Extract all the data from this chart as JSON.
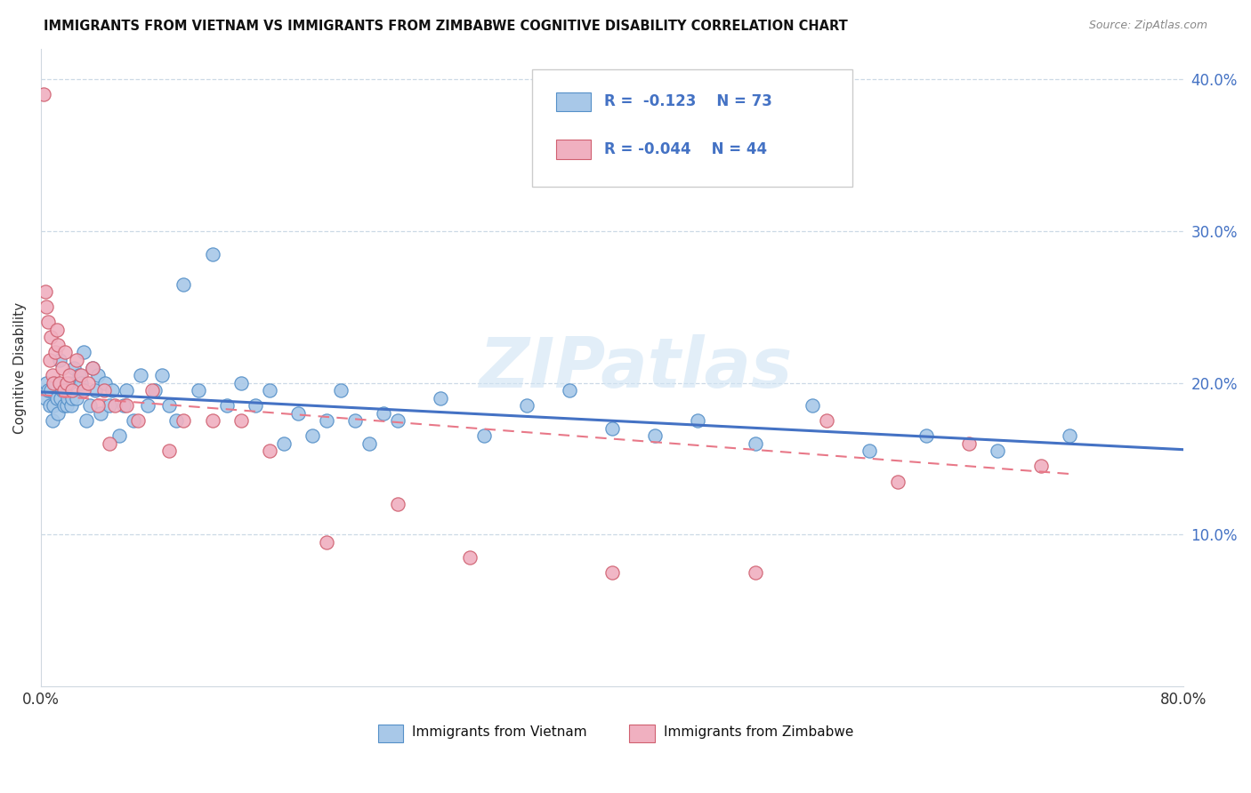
{
  "title": "IMMIGRANTS FROM VIETNAM VS IMMIGRANTS FROM ZIMBABWE COGNITIVE DISABILITY CORRELATION CHART",
  "source": "Source: ZipAtlas.com",
  "ylabel": "Cognitive Disability",
  "xlim": [
    0.0,
    0.8
  ],
  "ylim": [
    0.0,
    0.42
  ],
  "yticks": [
    0.1,
    0.2,
    0.3,
    0.4
  ],
  "ytick_labels": [
    "10.0%",
    "20.0%",
    "30.0%",
    "40.0%"
  ],
  "xticks": [
    0.0,
    0.1,
    0.2,
    0.3,
    0.4,
    0.5,
    0.6,
    0.7,
    0.8
  ],
  "xtick_labels": [
    "0.0%",
    "",
    "",
    "",
    "",
    "",
    "",
    "",
    "80.0%"
  ],
  "vietnam_color": "#a8c8e8",
  "vietnam_edge_color": "#5590c8",
  "zimbabwe_color": "#f0b0c0",
  "zimbabwe_edge_color": "#d06070",
  "vietnam_line_color": "#4472c4",
  "zimbabwe_line_color": "#e87888",
  "watermark": "ZIPatlas",
  "vietnam_x": [
    0.003,
    0.004,
    0.005,
    0.006,
    0.007,
    0.008,
    0.009,
    0.01,
    0.011,
    0.012,
    0.013,
    0.014,
    0.015,
    0.016,
    0.017,
    0.018,
    0.019,
    0.02,
    0.021,
    0.022,
    0.023,
    0.025,
    0.027,
    0.028,
    0.03,
    0.032,
    0.034,
    0.036,
    0.038,
    0.04,
    0.042,
    0.045,
    0.048,
    0.05,
    0.055,
    0.058,
    0.06,
    0.065,
    0.07,
    0.075,
    0.08,
    0.085,
    0.09,
    0.095,
    0.1,
    0.11,
    0.12,
    0.13,
    0.14,
    0.15,
    0.16,
    0.17,
    0.18,
    0.19,
    0.2,
    0.21,
    0.22,
    0.23,
    0.24,
    0.25,
    0.28,
    0.31,
    0.34,
    0.37,
    0.4,
    0.43,
    0.46,
    0.5,
    0.54,
    0.58,
    0.62,
    0.67,
    0.72
  ],
  "vietnam_y": [
    0.19,
    0.2,
    0.195,
    0.185,
    0.195,
    0.175,
    0.185,
    0.2,
    0.19,
    0.18,
    0.215,
    0.19,
    0.195,
    0.185,
    0.195,
    0.185,
    0.19,
    0.2,
    0.185,
    0.19,
    0.21,
    0.19,
    0.205,
    0.2,
    0.22,
    0.175,
    0.185,
    0.21,
    0.195,
    0.205,
    0.18,
    0.2,
    0.185,
    0.195,
    0.165,
    0.185,
    0.195,
    0.175,
    0.205,
    0.185,
    0.195,
    0.205,
    0.185,
    0.175,
    0.265,
    0.195,
    0.285,
    0.185,
    0.2,
    0.185,
    0.195,
    0.16,
    0.18,
    0.165,
    0.175,
    0.195,
    0.175,
    0.16,
    0.18,
    0.175,
    0.19,
    0.165,
    0.185,
    0.195,
    0.17,
    0.165,
    0.175,
    0.16,
    0.185,
    0.155,
    0.165,
    0.155,
    0.165
  ],
  "zimbabwe_x": [
    0.002,
    0.003,
    0.004,
    0.005,
    0.006,
    0.007,
    0.008,
    0.009,
    0.01,
    0.011,
    0.012,
    0.013,
    0.015,
    0.016,
    0.017,
    0.018,
    0.02,
    0.022,
    0.025,
    0.028,
    0.03,
    0.033,
    0.036,
    0.04,
    0.044,
    0.048,
    0.052,
    0.06,
    0.068,
    0.078,
    0.09,
    0.1,
    0.12,
    0.14,
    0.16,
    0.2,
    0.25,
    0.3,
    0.4,
    0.5,
    0.55,
    0.6,
    0.65,
    0.7
  ],
  "zimbabwe_y": [
    0.39,
    0.26,
    0.25,
    0.24,
    0.215,
    0.23,
    0.205,
    0.2,
    0.22,
    0.235,
    0.225,
    0.2,
    0.21,
    0.195,
    0.22,
    0.2,
    0.205,
    0.195,
    0.215,
    0.205,
    0.195,
    0.2,
    0.21,
    0.185,
    0.195,
    0.16,
    0.185,
    0.185,
    0.175,
    0.195,
    0.155,
    0.175,
    0.175,
    0.175,
    0.155,
    0.095,
    0.12,
    0.085,
    0.075,
    0.075,
    0.175,
    0.135,
    0.16,
    0.145
  ],
  "viet_line_x": [
    0.0,
    0.8
  ],
  "viet_line_y": [
    0.194,
    0.156
  ],
  "zimb_line_x": [
    0.0,
    0.72
  ],
  "zimb_line_y": [
    0.192,
    0.14
  ]
}
